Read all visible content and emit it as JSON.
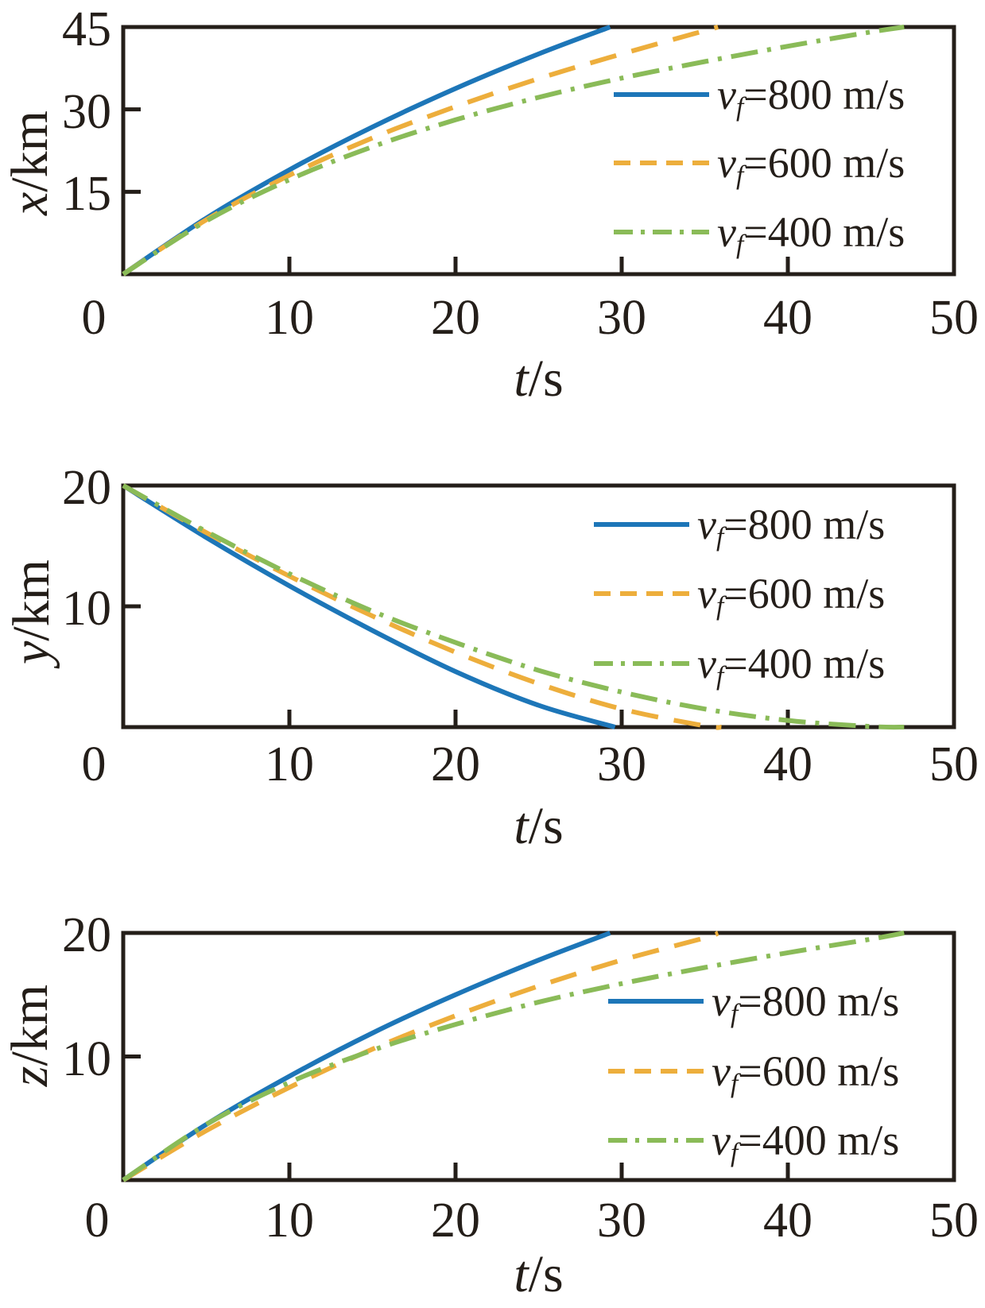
{
  "figure": {
    "background": "#ffffff",
    "axis_color": "#241e19",
    "text_color": "#241e19"
  },
  "colors": {
    "v800": "#1d76b8",
    "v600": "#edae3c",
    "v400": "#8abb58"
  },
  "legend_labels": [
    {
      "var": "v",
      "sub": "f",
      "value": "=800 m/s"
    },
    {
      "var": "v",
      "sub": "f",
      "value": "=600 m/s"
    },
    {
      "var": "v",
      "sub": "f",
      "value": "=400 m/s"
    }
  ],
  "chart_data": [
    {
      "type": "line",
      "title": "",
      "xlabel_var": "t",
      "xlabel_unit": "/s",
      "ylabel_var": "x",
      "ylabel_unit": "/km",
      "xlim": [
        0,
        50
      ],
      "ylim": [
        0,
        45
      ],
      "x_ticks": [
        0,
        10,
        20,
        30,
        40,
        50
      ],
      "y_ticks": [
        15,
        30,
        45
      ],
      "grid": false,
      "legend_position": "top-right",
      "series": [
        {
          "name": "vf=800 m/s",
          "style": "solid",
          "color_key": "v800",
          "x": [
            0,
            5,
            10,
            15,
            20,
            25,
            29.3
          ],
          "y": [
            0,
            10.2,
            19.0,
            26.8,
            33.8,
            40.1,
            45
          ]
        },
        {
          "name": "vf=600 m/s",
          "style": "dashed",
          "color_key": "v600",
          "x": [
            0,
            5,
            10,
            15,
            20,
            25,
            30,
            35.8
          ],
          "y": [
            0,
            9.9,
            18.0,
            24.8,
            30.5,
            35.6,
            40.1,
            45
          ]
        },
        {
          "name": "vf=400 m/s",
          "style": "dashdot",
          "color_key": "v400",
          "x": [
            0,
            5,
            10,
            15,
            20,
            25,
            30,
            35,
            40,
            45,
            47
          ],
          "y": [
            0,
            9.7,
            17.2,
            23.2,
            28.1,
            32.2,
            35.7,
            38.7,
            41.5,
            44.1,
            45
          ]
        }
      ]
    },
    {
      "type": "line",
      "title": "",
      "xlabel_var": "t",
      "xlabel_unit": "/s",
      "ylabel_var": "y",
      "ylabel_unit": "/km",
      "xlim": [
        0,
        50
      ],
      "ylim": [
        0,
        20
      ],
      "x_ticks": [
        0,
        10,
        20,
        30,
        40,
        50
      ],
      "y_ticks": [
        10,
        20
      ],
      "grid": false,
      "legend_position": "top-right",
      "series": [
        {
          "name": "vf=800 m/s",
          "style": "solid",
          "color_key": "v800",
          "x": [
            0,
            5,
            10,
            15,
            20,
            25,
            29.6
          ],
          "y": [
            20,
            15.7,
            11.7,
            8.0,
            4.6,
            1.8,
            0
          ]
        },
        {
          "name": "vf=600 m/s",
          "style": "dashed",
          "color_key": "v600",
          "x": [
            0,
            5,
            10,
            15,
            20,
            25,
            30,
            35,
            36
          ],
          "y": [
            20,
            16.1,
            12.5,
            9.2,
            6.2,
            3.6,
            1.5,
            0.1,
            0
          ]
        },
        {
          "name": "vf=400 m/s",
          "style": "dashdot",
          "color_key": "v400",
          "x": [
            0,
            5,
            10,
            15,
            20,
            25,
            30,
            35,
            40,
            45,
            47
          ],
          "y": [
            20,
            16.2,
            12.7,
            9.6,
            7.0,
            4.7,
            2.9,
            1.5,
            0.55,
            0.05,
            0
          ]
        }
      ]
    },
    {
      "type": "line",
      "title": "",
      "xlabel_var": "t",
      "xlabel_unit": "/s",
      "ylabel_var": "z",
      "ylabel_unit": "/km",
      "xlim": [
        0,
        50
      ],
      "ylim": [
        0,
        20
      ],
      "x_ticks": [
        0,
        10,
        20,
        30,
        40,
        50
      ],
      "y_ticks": [
        10,
        20
      ],
      "grid": false,
      "legend_position": "right",
      "series": [
        {
          "name": "vf=800 m/s",
          "style": "solid",
          "color_key": "v800",
          "x": [
            0,
            5,
            10,
            15,
            20,
            25,
            29.3
          ],
          "y": [
            0,
            4.5,
            8.4,
            11.9,
            15.0,
            17.8,
            20
          ]
        },
        {
          "name": "vf=600 m/s",
          "style": "dashed",
          "color_key": "v600",
          "x": [
            0,
            5,
            10,
            15,
            20,
            25,
            30,
            35,
            35.8
          ],
          "y": [
            0,
            4.0,
            7.5,
            10.6,
            13.3,
            15.7,
            17.8,
            19.6,
            20
          ]
        },
        {
          "name": "vf=400 m/s",
          "style": "dashdot",
          "color_key": "v400",
          "x": [
            0,
            5,
            10,
            15,
            20,
            25,
            30,
            35,
            40,
            45,
            47
          ],
          "y": [
            0,
            4.5,
            7.9,
            10.5,
            12.6,
            14.4,
            15.9,
            17.2,
            18.4,
            19.5,
            20
          ]
        }
      ]
    }
  ]
}
